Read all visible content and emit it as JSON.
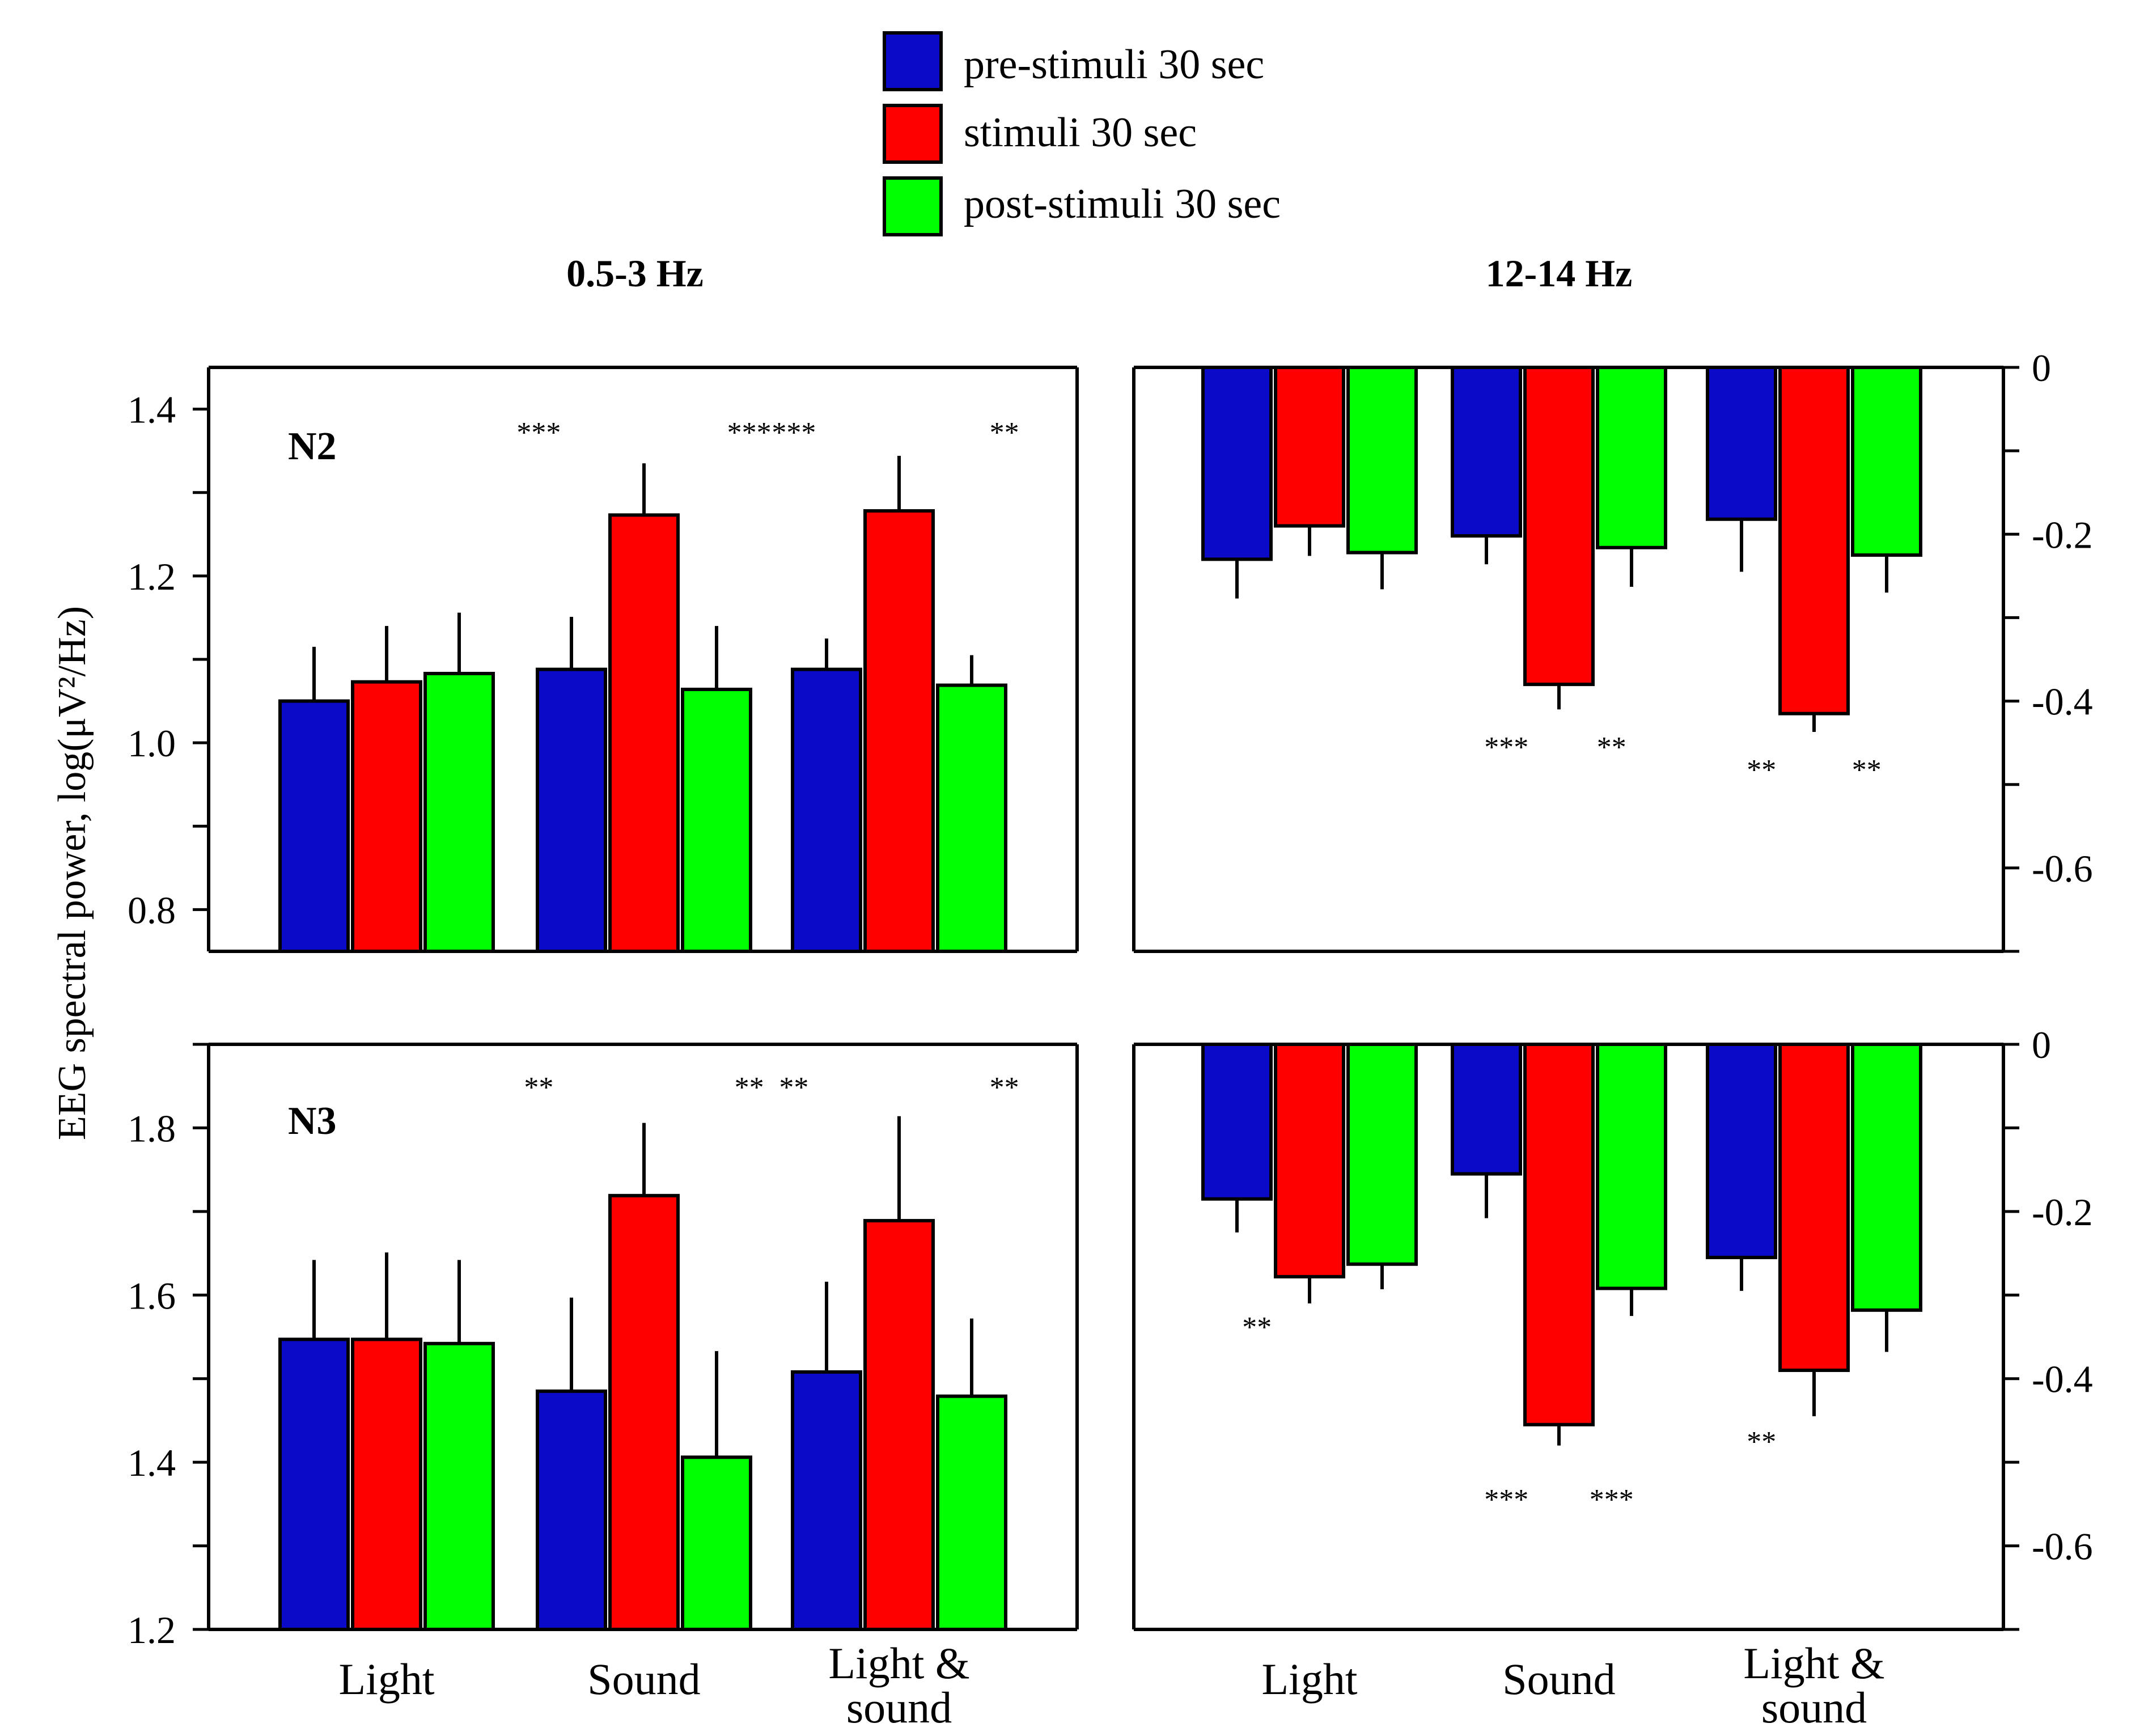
{
  "colors": {
    "pre": "#0a0ac8",
    "stim": "#ff0000",
    "post": "#00ff00"
  },
  "legend": [
    {
      "key": "pre",
      "label": "pre-stimuli 30 sec"
    },
    {
      "key": "stim",
      "label": "stimuli 30 sec"
    },
    {
      "key": "post",
      "label": "post-stimuli 30 sec"
    }
  ],
  "column_titles": {
    "left": "0.5-3 Hz",
    "right": "12-14 Hz"
  },
  "ylabel": "EEG spectral power, log(μV²/Hz)",
  "chart_data": [
    {
      "id": "n2-delta",
      "type": "bar",
      "stage_label": "N2",
      "band": "0.5-3 Hz",
      "categories": [
        "Light",
        "Sound",
        "Light & sound"
      ],
      "series": [
        {
          "name": "pre-stimuli 30 sec",
          "values": [
            1.05,
            1.088,
            1.088
          ],
          "errors": [
            0.065,
            0.063,
            0.037
          ]
        },
        {
          "name": "stimuli 30 sec",
          "values": [
            1.073,
            1.273,
            1.278
          ],
          "errors": [
            0.067,
            0.062,
            0.066
          ]
        },
        {
          "name": "post-stimuli 30 sec",
          "values": [
            1.083,
            1.064,
            1.069
          ],
          "errors": [
            0.073,
            0.076,
            0.036
          ]
        }
      ],
      "yticks": [
        0.8,
        1.0,
        1.2,
        1.4
      ],
      "ytick_labels": [
        "0.8",
        "1.0",
        "1.2",
        "1.4"
      ],
      "ylim": [
        0.75,
        1.45
      ],
      "significance": [
        {
          "category": "Sound",
          "slot": "left",
          "label": "***"
        },
        {
          "category": "Sound",
          "slot": "right",
          "label": "***"
        },
        {
          "category": "Light & sound",
          "slot": "left",
          "label": "***"
        },
        {
          "category": "Light & sound",
          "slot": "right",
          "label": "**"
        }
      ]
    },
    {
      "id": "n2-sigma",
      "type": "bar",
      "stage_label": "",
      "band": "12-14 Hz",
      "categories": [
        "Light",
        "Sound",
        "Light & sound"
      ],
      "series": [
        {
          "name": "pre-stimuli 30 sec",
          "values": [
            -0.23,
            -0.202,
            -0.182
          ],
          "errors": [
            0.047,
            0.034,
            0.063
          ]
        },
        {
          "name": "stimuli 30 sec",
          "values": [
            -0.19,
            -0.38,
            -0.415
          ],
          "errors": [
            0.036,
            0.03,
            0.022
          ]
        },
        {
          "name": "post-stimuli 30 sec",
          "values": [
            -0.222,
            -0.216,
            -0.225
          ],
          "errors": [
            0.044,
            0.047,
            0.045
          ]
        }
      ],
      "yticks": [
        0,
        -0.2,
        -0.4,
        -0.6
      ],
      "ytick_labels": [
        "0",
        "-0.2",
        "-0.4",
        "-0.6"
      ],
      "ylim": [
        -0.7,
        0
      ],
      "significance": [
        {
          "category": "Sound",
          "slot": "left",
          "label": "***"
        },
        {
          "category": "Sound",
          "slot": "right",
          "label": "**"
        },
        {
          "category": "Light & sound",
          "slot": "left",
          "label": "**"
        },
        {
          "category": "Light & sound",
          "slot": "right",
          "label": "**"
        }
      ]
    },
    {
      "id": "n3-delta",
      "type": "bar",
      "stage_label": "N3",
      "band": "0.5-3 Hz",
      "categories": [
        "Light",
        "Sound",
        "Light & sound"
      ],
      "series": [
        {
          "name": "pre-stimuli 30 sec",
          "values": [
            1.547,
            1.485,
            1.508
          ],
          "errors": [
            0.095,
            0.112,
            0.108
          ]
        },
        {
          "name": "stimuli 30 sec",
          "values": [
            1.547,
            1.719,
            1.689
          ],
          "errors": [
            0.104,
            0.087,
            0.125
          ]
        },
        {
          "name": "post-stimuli 30 sec",
          "values": [
            1.542,
            1.406,
            1.479
          ],
          "errors": [
            0.1,
            0.127,
            0.093
          ]
        }
      ],
      "yticks": [
        1.2,
        1.4,
        1.6,
        1.8
      ],
      "ytick_labels": [
        "1.2",
        "1.4",
        "1.6",
        "1.8"
      ],
      "ylim": [
        1.2,
        1.9
      ],
      "significance": [
        {
          "category": "Sound",
          "slot": "left",
          "label": "**"
        },
        {
          "category": "Sound",
          "slot": "right",
          "label": "**"
        },
        {
          "category": "Light & sound",
          "slot": "left",
          "label": "**"
        },
        {
          "category": "Light & sound",
          "slot": "right",
          "label": "**"
        }
      ]
    },
    {
      "id": "n3-sigma",
      "type": "bar",
      "stage_label": "",
      "band": "12-14 Hz",
      "categories": [
        "Light",
        "Sound",
        "Light & sound"
      ],
      "series": [
        {
          "name": "pre-stimuli 30 sec",
          "values": [
            -0.185,
            -0.155,
            -0.255
          ],
          "errors": [
            0.04,
            0.053,
            0.04
          ]
        },
        {
          "name": "stimuli 30 sec",
          "values": [
            -0.278,
            -0.455,
            -0.39
          ],
          "errors": [
            0.032,
            0.025,
            0.055
          ]
        },
        {
          "name": "post-stimuli 30 sec",
          "values": [
            -0.263,
            -0.292,
            -0.318
          ],
          "errors": [
            0.03,
            0.033,
            0.05
          ]
        }
      ],
      "yticks": [
        0,
        -0.2,
        -0.4,
        -0.6
      ],
      "ytick_labels": [
        "0",
        "-0.2",
        "-0.4",
        "-0.6"
      ],
      "ylim": [
        -0.7,
        0
      ],
      "significance": [
        {
          "category": "Light",
          "slot": "left",
          "label": "**"
        },
        {
          "category": "Sound",
          "slot": "left",
          "label": "***"
        },
        {
          "category": "Sound",
          "slot": "right",
          "label": "***"
        },
        {
          "category": "Light & sound",
          "slot": "left",
          "label": "**"
        }
      ]
    }
  ]
}
